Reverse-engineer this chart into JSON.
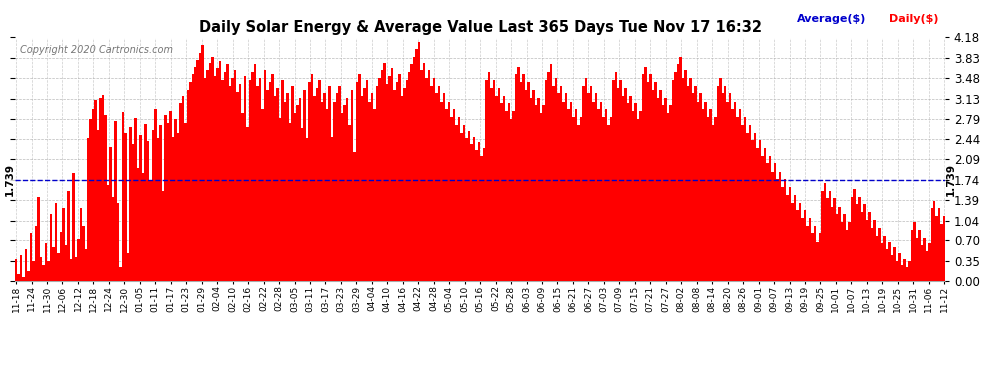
{
  "title": "Daily Solar Energy & Average Value Last 365 Days Tue Nov 17 16:32",
  "copyright": "Copyright 2020 Cartronics.com",
  "average_value": 1.739,
  "bar_color": "#ff0000",
  "average_line_color": "#0000cc",
  "avg_label": "Average($)",
  "avg_label_color": "#0000cc",
  "daily_label": "Daily($)",
  "daily_label_color": "#ff0000",
  "background_color": "#ffffff",
  "grid_color": "#aaaaaa",
  "ylim": [
    0.0,
    4.18
  ],
  "yticks": [
    0.0,
    0.35,
    0.7,
    1.04,
    1.39,
    1.74,
    2.09,
    2.44,
    2.79,
    3.13,
    3.48,
    3.83,
    4.18
  ],
  "x_labels": [
    "11-18",
    "11-24",
    "11-30",
    "12-06",
    "12-12",
    "12-18",
    "12-24",
    "12-30",
    "01-05",
    "01-11",
    "01-17",
    "01-23",
    "01-29",
    "02-04",
    "02-10",
    "02-16",
    "02-22",
    "02-28",
    "03-05",
    "03-11",
    "03-17",
    "03-23",
    "03-29",
    "04-04",
    "04-10",
    "04-16",
    "04-22",
    "04-28",
    "05-04",
    "05-10",
    "05-16",
    "05-22",
    "05-28",
    "06-03",
    "06-09",
    "06-15",
    "06-21",
    "06-27",
    "07-03",
    "07-09",
    "07-15",
    "07-21",
    "07-27",
    "08-02",
    "08-08",
    "08-14",
    "08-20",
    "08-26",
    "09-01",
    "09-07",
    "09-13",
    "09-19",
    "09-25",
    "10-01",
    "10-07",
    "10-13",
    "10-19",
    "10-25",
    "10-31",
    "11-06",
    "11-12"
  ],
  "bar_values": [
    0.38,
    0.12,
    0.45,
    0.08,
    0.55,
    0.18,
    0.82,
    0.35,
    0.95,
    1.45,
    0.42,
    0.28,
    0.65,
    0.35,
    1.15,
    0.58,
    1.35,
    0.48,
    0.85,
    1.25,
    0.62,
    1.55,
    0.38,
    1.85,
    0.42,
    0.72,
    1.25,
    0.95,
    0.55,
    2.45,
    2.78,
    2.95,
    3.1,
    2.6,
    3.15,
    3.2,
    2.85,
    1.65,
    2.3,
    1.45,
    2.75,
    1.35,
    0.25,
    2.9,
    2.55,
    0.48,
    2.65,
    2.35,
    2.8,
    1.95,
    2.5,
    1.85,
    2.7,
    2.4,
    1.72,
    2.6,
    2.95,
    2.45,
    2.68,
    1.55,
    2.85,
    2.72,
    2.92,
    2.48,
    2.78,
    2.55,
    3.05,
    3.18,
    2.72,
    3.28,
    3.42,
    3.55,
    3.68,
    3.8,
    3.92,
    4.05,
    3.48,
    3.62,
    3.75,
    3.85,
    3.52,
    3.65,
    3.78,
    3.45,
    3.58,
    3.72,
    3.35,
    3.48,
    3.62,
    3.25,
    3.38,
    2.88,
    3.52,
    2.65,
    3.45,
    3.58,
    3.72,
    3.35,
    3.48,
    2.95,
    3.62,
    3.28,
    3.42,
    3.55,
    3.18,
    3.32,
    2.8,
    3.45,
    3.08,
    3.22,
    2.72,
    3.35,
    2.88,
    3.02,
    3.15,
    2.62,
    3.28,
    2.45,
    3.42,
    3.55,
    3.18,
    3.32,
    3.45,
    3.08,
    3.22,
    2.95,
    3.35,
    2.48,
    3.08,
    3.22,
    3.35,
    2.88,
    3.02,
    3.15,
    2.68,
    3.28,
    2.22,
    3.42,
    3.55,
    3.18,
    3.32,
    3.45,
    3.08,
    3.22,
    2.95,
    3.35,
    3.48,
    3.62,
    3.75,
    3.38,
    3.52,
    3.65,
    3.28,
    3.42,
    3.55,
    3.18,
    3.32,
    3.45,
    3.58,
    3.72,
    3.85,
    3.98,
    4.1,
    3.62,
    3.75,
    3.48,
    3.62,
    3.35,
    3.48,
    3.22,
    3.35,
    3.08,
    3.22,
    2.95,
    3.08,
    2.82,
    2.95,
    2.68,
    2.82,
    2.55,
    2.68,
    2.45,
    2.58,
    2.35,
    2.48,
    2.25,
    2.38,
    2.15,
    2.28,
    3.45,
    3.58,
    3.32,
    3.45,
    3.18,
    3.32,
    3.05,
    3.18,
    2.92,
    3.05,
    2.78,
    2.92,
    3.55,
    3.68,
    3.42,
    3.55,
    3.28,
    3.42,
    3.15,
    3.28,
    3.02,
    3.15,
    2.88,
    3.02,
    3.45,
    3.58,
    3.72,
    3.35,
    3.48,
    3.22,
    3.35,
    3.08,
    3.22,
    2.95,
    3.08,
    2.82,
    2.95,
    2.68,
    2.82,
    3.35,
    3.48,
    3.22,
    3.35,
    3.08,
    3.22,
    2.95,
    3.08,
    2.82,
    2.95,
    2.68,
    2.82,
    3.45,
    3.58,
    3.32,
    3.45,
    3.18,
    3.32,
    3.05,
    3.18,
    2.92,
    3.05,
    2.78,
    2.92,
    3.55,
    3.68,
    3.42,
    3.55,
    3.28,
    3.42,
    3.15,
    3.28,
    3.02,
    3.15,
    2.88,
    3.02,
    3.45,
    3.58,
    3.72,
    3.85,
    3.48,
    3.62,
    3.35,
    3.48,
    3.22,
    3.35,
    3.08,
    3.22,
    2.95,
    3.08,
    2.82,
    2.95,
    2.68,
    2.82,
    3.35,
    3.48,
    3.22,
    3.35,
    3.08,
    3.22,
    2.95,
    3.08,
    2.82,
    2.95,
    2.68,
    2.82,
    2.55,
    2.68,
    2.42,
    2.55,
    2.28,
    2.42,
    2.15,
    2.28,
    2.02,
    2.15,
    1.88,
    2.02,
    1.75,
    1.88,
    1.62,
    1.75,
    1.48,
    1.62,
    1.35,
    1.48,
    1.22,
    1.35,
    1.08,
    1.22,
    0.95,
    1.08,
    0.82,
    0.95,
    0.68,
    0.82,
    1.55,
    1.68,
    1.42,
    1.55,
    1.28,
    1.42,
    1.15,
    1.28,
    1.02,
    1.15,
    0.88,
    1.02,
    1.45,
    1.58,
    1.32,
    1.45,
    1.18,
    1.32,
    1.05,
    1.18,
    0.92,
    1.05,
    0.78,
    0.92,
    0.65,
    0.78,
    0.55,
    0.68,
    0.45,
    0.58,
    0.35,
    0.48,
    0.28,
    0.38,
    0.25,
    0.35,
    0.88,
    1.02,
    0.75,
    0.88,
    0.62,
    0.75,
    0.52,
    0.65,
    1.25,
    1.38,
    1.12,
    1.25,
    0.98,
    1.12
  ]
}
